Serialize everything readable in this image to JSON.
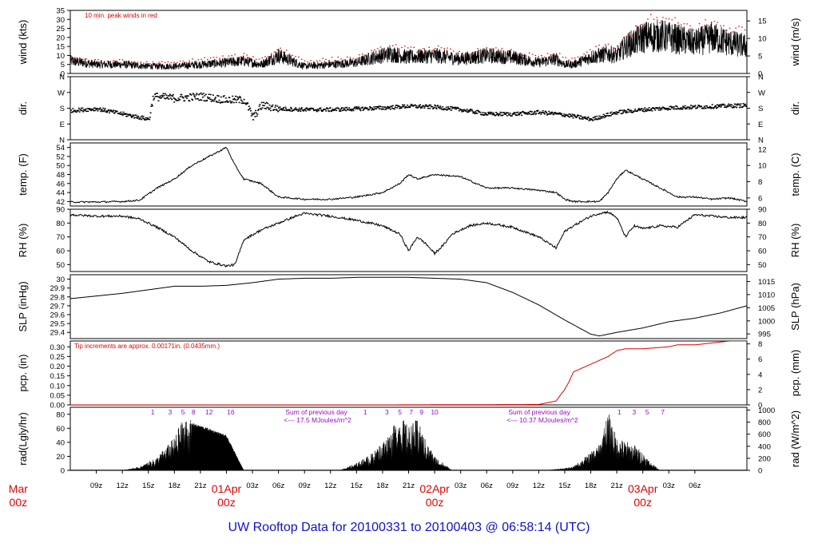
{
  "title": "UW Rooftop Data for 20100331  to  20100403 @ 06:58:14  (UTC)",
  "colors": {
    "line": "#000000",
    "peak": "#e00000",
    "precip": "#e00000",
    "annot": "#9010c0",
    "date": "#e00000",
    "title": "#1010d0"
  },
  "chart_data": {
    "type": "line",
    "x_axis": {
      "range_hours": [
        0,
        78
      ],
      "first_hour_utc": "2010-03-31 06z",
      "tick_labels": [
        "09z",
        "12z",
        "15z",
        "18z",
        "21z",
        "01Apr",
        "03z",
        "06z",
        "09z",
        "12z",
        "15z",
        "18z",
        "21z",
        "02Apr",
        "03z",
        "06z",
        "09z",
        "12z",
        "15z",
        "18z",
        "21z",
        "03Apr",
        "03z",
        "06z"
      ],
      "tick_hours": [
        3,
        6,
        9,
        12,
        15,
        18,
        21,
        24,
        27,
        30,
        33,
        36,
        39,
        42,
        45,
        48,
        51,
        54,
        57,
        60,
        63,
        66,
        69,
        72
      ],
      "date_labels": [
        {
          "day": "Mar",
          "time": "00z",
          "hour": -6
        },
        {
          "day": "01Apr",
          "time": "00z",
          "hour": 18
        },
        {
          "day": "02Apr",
          "time": "00z",
          "hour": 42
        },
        {
          "day": "03Apr",
          "time": "00z",
          "hour": 66
        }
      ]
    },
    "panels": [
      {
        "id": "wind",
        "ylabel_left": "wind (kts)",
        "ylabel_right": "wind (m/s)",
        "ylim": [
          0,
          35
        ],
        "left_ticks": [
          0,
          5,
          10,
          15,
          20,
          25,
          30,
          35
        ],
        "right_ticks": [
          {
            "label": "0",
            "v": 0
          },
          {
            "label": "5",
            "v": 9.72
          },
          {
            "label": "10",
            "v": 19.44
          },
          {
            "label": "15",
            "v": 29.16
          }
        ],
        "annotation": "10 min. peak winds in red",
        "series": [
          {
            "name": "wind",
            "x": [
              0,
              3,
              6,
              9,
              12,
              15,
              18,
              20,
              22,
              24,
              27,
              30,
              33,
              35,
              37,
              39,
              42,
              45,
              48,
              51,
              54,
              56,
              57,
              58,
              60,
              61,
              62,
              63,
              64,
              66,
              68,
              70,
              72,
              74,
              76,
              78
            ],
            "y": [
              7,
              5,
              5,
              4,
              4,
              5,
              6,
              7,
              5,
              10,
              4,
              5,
              6,
              9,
              11,
              9,
              10,
              8,
              10,
              9,
              6,
              8,
              5,
              5,
              9,
              10,
              11,
              10,
              15,
              20,
              21,
              19,
              17,
              20,
              17,
              15
            ]
          },
          {
            "name": "10 min. peak winds",
            "x": [
              0,
              3,
              6,
              9,
              12,
              15,
              18,
              20,
              22,
              24,
              27,
              30,
              33,
              35,
              37,
              39,
              42,
              45,
              48,
              51,
              54,
              56,
              57,
              58,
              60,
              61,
              62,
              63,
              64,
              66,
              68,
              70,
              72,
              74,
              76,
              78
            ],
            "y": [
              9,
              7,
              7,
              6,
              6,
              8,
              9,
              10,
              8,
              14,
              7,
              8,
              9,
              12,
              15,
              13,
              14,
              11,
              13,
              12,
              9,
              11,
              8,
              8,
              13,
              14,
              15,
              14,
              20,
              28,
              30,
              27,
              25,
              28,
              25,
              23
            ]
          }
        ]
      },
      {
        "id": "dir",
        "ylabel_left": "dir.",
        "ylabel_right": "dir.",
        "ylim": [
          0,
          360
        ],
        "left_ticks": [
          {
            "label": "N",
            "v": 0
          },
          {
            "label": "E",
            "v": 90
          },
          {
            "label": "S",
            "v": 180
          },
          {
            "label": "W",
            "v": 270
          },
          {
            "label": "N",
            "v": 360
          }
        ],
        "right_ticks": [
          {
            "label": "N",
            "v": 0
          },
          {
            "label": "E",
            "v": 90
          },
          {
            "label": "S",
            "v": 180
          },
          {
            "label": "W",
            "v": 270
          },
          {
            "label": "N",
            "v": 360
          }
        ],
        "series": [
          {
            "name": "direction",
            "x": [
              0,
              3,
              6,
              9,
              9.5,
              12,
              15,
              18,
              20,
              21,
              22,
              24,
              27,
              30,
              33,
              36,
              39,
              42,
              45,
              48,
              51,
              54,
              57,
              60,
              63,
              66,
              69,
              72,
              75,
              78
            ],
            "y": [
              170,
              180,
              150,
              120,
              250,
              240,
              250,
              230,
              230,
              130,
              200,
              180,
              175,
              175,
              180,
              185,
              195,
              190,
              175,
              150,
              150,
              160,
              145,
              120,
              160,
              175,
              185,
              190,
              195,
              200
            ]
          }
        ]
      },
      {
        "id": "temp",
        "ylabel_left": "temp. (F)",
        "ylabel_right": "temp. (C)",
        "ylim": [
          41,
          55
        ],
        "left_ticks": [
          42,
          44,
          46,
          48,
          50,
          52,
          54
        ],
        "right_ticks": [
          {
            "label": "6",
            "v": 42.8
          },
          {
            "label": "8",
            "v": 46.4
          },
          {
            "label": "10",
            "v": 50
          },
          {
            "label": "12",
            "v": 53.6
          }
        ],
        "series": [
          {
            "name": "temperature",
            "x": [
              0,
              3,
              6,
              8,
              10,
              12,
              14,
              16,
              18,
              19,
              20,
              22,
              24,
              27,
              30,
              33,
              36,
              38,
              39,
              40,
              42,
              45,
              48,
              51,
              54,
              56,
              57,
              58,
              60,
              61,
              62,
              63,
              64,
              66,
              67,
              68,
              70,
              72,
              74,
              76,
              78
            ],
            "y": [
              41.9,
              41.9,
              42,
              42.3,
              45,
              47,
              50,
              52,
              54,
              50,
              47,
              46,
              43,
              42.5,
              42.5,
              43,
              44,
              46,
              48,
              47,
              48,
              47.5,
              45,
              45,
              44.5,
              44,
              42.5,
              42,
              42,
              42,
              44,
              47,
              49,
              47,
              46,
              45,
              43,
              43,
              42.5,
              42.8,
              42
            ]
          }
        ]
      },
      {
        "id": "rh",
        "ylabel_left": "RH (%)",
        "ylabel_right": "RH (%)",
        "ylim": [
          45,
          90
        ],
        "left_ticks": [
          50,
          60,
          70,
          80,
          90
        ],
        "right_ticks": [
          {
            "label": "50",
            "v": 50
          },
          {
            "label": "60",
            "v": 60
          },
          {
            "label": "70",
            "v": 70
          },
          {
            "label": "80",
            "v": 80
          },
          {
            "label": "90",
            "v": 90
          }
        ],
        "series": [
          {
            "name": "relative humidity",
            "x": [
              0,
              3,
              6,
              8,
              10,
              12,
              14,
              16,
              18,
              19,
              20,
              22,
              24,
              26,
              27,
              30,
              33,
              36,
              38,
              39,
              40,
              41,
              42,
              43,
              44,
              46,
              48,
              51,
              54,
              56,
              57,
              58,
              60,
              61,
              62,
              63,
              64,
              65,
              66,
              68,
              70,
              72,
              74,
              76,
              78
            ],
            "y": [
              86,
              85,
              85,
              83,
              77,
              70,
              60,
              52,
              49,
              50,
              68,
              75,
              80,
              85,
              87,
              85,
              82,
              78,
              72,
              60,
              70,
              65,
              58,
              64,
              72,
              78,
              80,
              77,
              70,
              62,
              74,
              78,
              85,
              87,
              88,
              84,
              70,
              78,
              76,
              78,
              77,
              86,
              85,
              84,
              84
            ]
          }
        ]
      },
      {
        "id": "slp",
        "ylabel_left": "SLP (inHg)",
        "ylabel_right": "SLP (hPa)",
        "ylim": [
          29.33,
          30.05
        ],
        "left_ticks": [
          29.4,
          29.5,
          29.6,
          29.7,
          29.8,
          29.9,
          30.0
        ],
        "right_ticks": [
          {
            "label": "995",
            "v": 29.383
          },
          {
            "label": "1000",
            "v": 29.53
          },
          {
            "label": "1005",
            "v": 29.678
          },
          {
            "label": "1010",
            "v": 29.826
          },
          {
            "label": "1015",
            "v": 29.973
          }
        ],
        "series": [
          {
            "name": "sea level pressure",
            "x": [
              0,
              6,
              12,
              15,
              18,
              21,
              24,
              27,
              30,
              33,
              36,
              39,
              42,
              45,
              48,
              51,
              54,
              57,
              60,
              61,
              63,
              66,
              69,
              72,
              75,
              78
            ],
            "y": [
              29.78,
              29.84,
              29.92,
              29.92,
              29.93,
              29.96,
              30.0,
              30.01,
              30.01,
              30.02,
              30.02,
              30.02,
              30.01,
              30.0,
              29.96,
              29.85,
              29.71,
              29.54,
              29.38,
              29.36,
              29.4,
              29.45,
              29.52,
              29.56,
              29.62,
              29.7
            ]
          }
        ]
      },
      {
        "id": "pcp",
        "ylabel_left": "pcp. (in)",
        "ylabel_right": "pcp. (mm)",
        "ylim": [
          0,
          0.33
        ],
        "left_ticks": [
          0.0,
          0.05,
          0.1,
          0.15,
          0.2,
          0.25,
          0.3
        ],
        "left_tick_labels": [
          "0.00",
          "0.05",
          "0.10",
          "0.15",
          "0.20",
          "0.25",
          "0.30"
        ],
        "right_ticks": [
          {
            "label": "0",
            "v": 0
          },
          {
            "label": "2",
            "v": 0.0787
          },
          {
            "label": "4",
            "v": 0.1575
          },
          {
            "label": "6",
            "v": 0.2362
          },
          {
            "label": "8",
            "v": 0.315
          }
        ],
        "annotation": "Tip increments are approx. 0.00171in. (0.0435mm.)",
        "series": [
          {
            "name": "precipitation",
            "x": [
              0,
              36,
              54,
              56,
              57,
              57.5,
              58,
              60,
              62,
              63,
              64,
              66,
              69,
              70,
              72,
              74,
              76,
              78
            ],
            "y": [
              0,
              0,
              0.002,
              0.02,
              0.08,
              0.12,
              0.17,
              0.21,
              0.25,
              0.28,
              0.29,
              0.29,
              0.3,
              0.31,
              0.31,
              0.32,
              0.33,
              0.33
            ]
          }
        ]
      },
      {
        "id": "rad",
        "ylabel_left": "rad(Lgly/hr)",
        "ylabel_right": "rad (W/m^2)",
        "ylim": [
          0,
          90
        ],
        "left_ticks": [
          0,
          20,
          40,
          60,
          80
        ],
        "right_ticks": [
          {
            "label": "0",
            "v": 0
          },
          {
            "label": "200",
            "v": 17.2
          },
          {
            "label": "400",
            "v": 34.4
          },
          {
            "label": "600",
            "v": 51.6
          },
          {
            "label": "800",
            "v": 68.8
          },
          {
            "label": "1000",
            "v": 86.0
          }
        ],
        "series": [
          {
            "name": "day 1",
            "x": [
              6,
              8,
              10,
              12,
              13,
              14,
              16,
              18,
              20
            ],
            "y": [
              0,
              5,
              18,
              45,
              72,
              68,
              60,
              50,
              0
            ]
          },
          {
            "name": "day 2",
            "x": [
              31,
              33,
              35,
              37,
              38,
              39,
              40,
              41,
              42,
              44
            ],
            "y": [
              0,
              10,
              25,
              55,
              75,
              60,
              70,
              40,
              20,
              0
            ]
          },
          {
            "name": "day 3",
            "x": [
              55,
              58,
              61,
              62,
              63,
              64,
              65,
              66,
              67,
              68
            ],
            "y": [
              0,
              5,
              35,
              80,
              45,
              40,
              35,
              25,
              10,
              0
            ]
          }
        ],
        "hour_markers": [
          {
            "labels": [
              "1",
              "3",
              "5",
              "8",
              "12",
              "16"
            ],
            "x": [
              9.5,
              11.5,
              13,
              14.2,
              16,
              18.5
            ]
          },
          {
            "labels": [
              "1",
              "3",
              "5",
              "7",
              "9",
              "10"
            ],
            "x": [
              34,
              36.5,
              38,
              39.3,
              40.5,
              42
            ]
          },
          {
            "labels": [
              "1",
              "3",
              "5",
              "7"
            ],
            "x": [
              63.3,
              65,
              66.5,
              68.3
            ]
          }
        ],
        "daily_sums": [
          {
            "line1": "Sum of previous day",
            "line2": "<--- 17.5 MJoules/m^2",
            "x": 24.8
          },
          {
            "line1": "Sum of previous day",
            "line2": "<--- 10.37 MJoules/m^2",
            "x": 50.5
          }
        ]
      }
    ]
  }
}
